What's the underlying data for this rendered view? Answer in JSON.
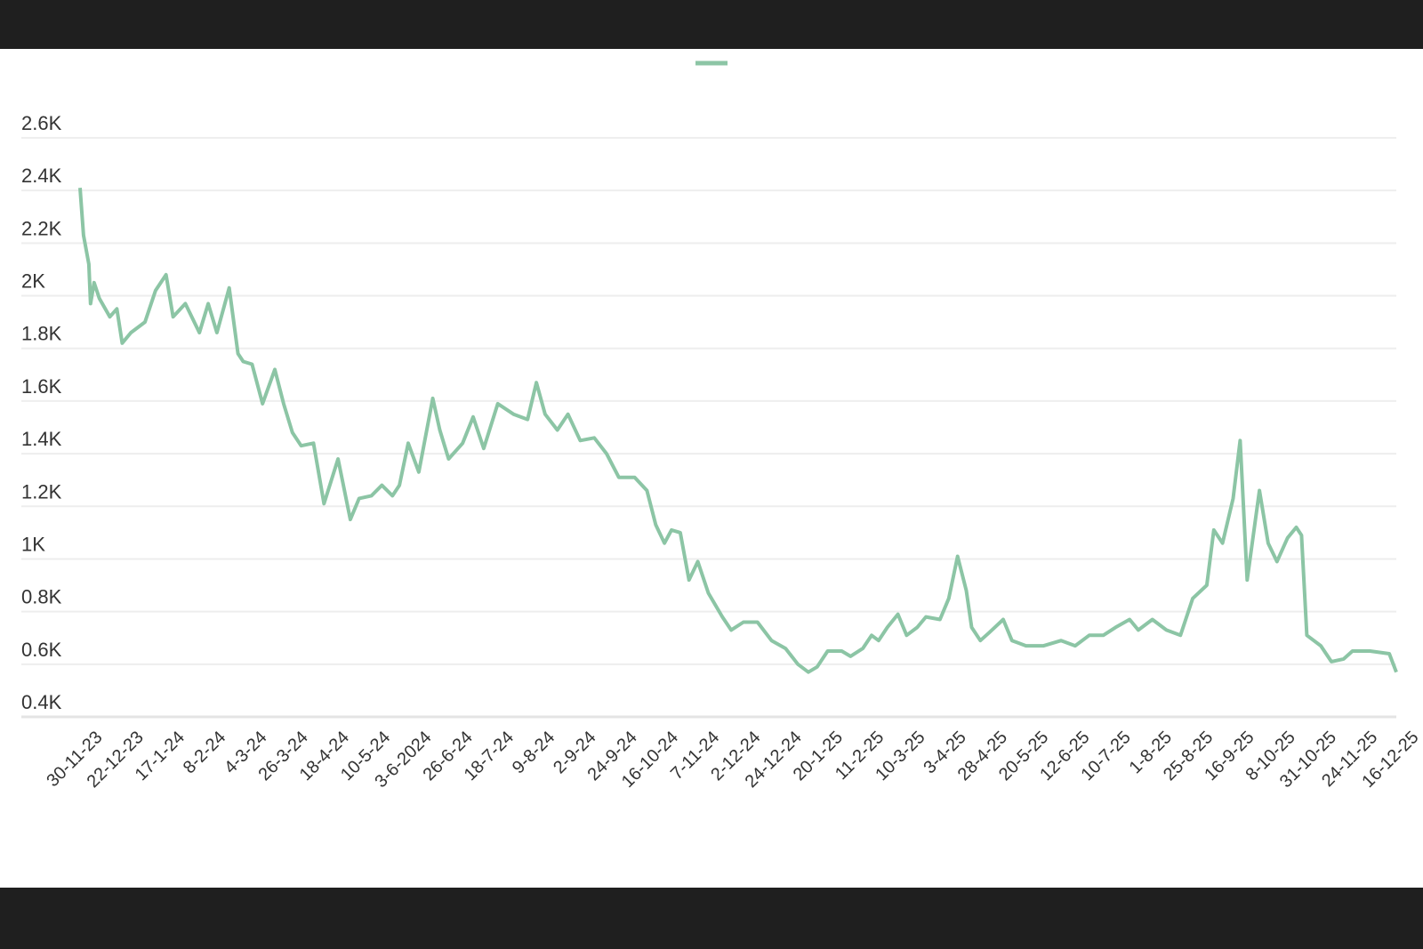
{
  "chart_data": {
    "type": "line",
    "title": "",
    "xlabel": "",
    "ylabel": "",
    "legend": {
      "placement": "top-center",
      "entries": [
        ""
      ]
    },
    "series_color": "#8cc5a5",
    "grid": true,
    "ylim": [
      400,
      2600
    ],
    "y_ticks": [
      "0.4K",
      "0.6K",
      "0.8K",
      "1K",
      "1.2K",
      "1.4K",
      "1.6K",
      "1.8K",
      "2K",
      "2.2K",
      "2.4K",
      "2.6K"
    ],
    "y_tick_values": [
      400,
      600,
      800,
      1000,
      1200,
      1400,
      1600,
      1800,
      2000,
      2200,
      2400,
      2600
    ],
    "x_ticks": [
      "30-11-23",
      "22-12-23",
      "17-1-24",
      "8-2-24",
      "4-3-24",
      "26-3-24",
      "18-4-24",
      "10-5-24",
      "3-6-2024",
      "26-6-24",
      "18-7-24",
      "9-8-24",
      "2-9-24",
      "24-9-24",
      "16-10-24",
      "7-11-24",
      "2-12-24",
      "24-12-24",
      "20-1-25",
      "11-2-25",
      "10-3-25",
      "3-4-25",
      "28-4-25",
      "20-5-25",
      "12-6-25",
      "10-7-25",
      "1-8-25",
      "25-8-25",
      "16-9-25",
      "8-10-25",
      "31-10-25",
      "24-11-25",
      "16-12-25"
    ],
    "x_range_days": [
      0,
      750
    ],
    "x_unit": "days since 30-11-23",
    "series": [
      {
        "name": "",
        "points": [
          [
            0,
            2410
          ],
          [
            2,
            2230
          ],
          [
            5,
            2120
          ],
          [
            6,
            1970
          ],
          [
            8,
            2050
          ],
          [
            11,
            1990
          ],
          [
            17,
            1920
          ],
          [
            21,
            1950
          ],
          [
            24,
            1820
          ],
          [
            29,
            1860
          ],
          [
            37,
            1900
          ],
          [
            43,
            2020
          ],
          [
            49,
            2080
          ],
          [
            53,
            1920
          ],
          [
            60,
            1970
          ],
          [
            68,
            1860
          ],
          [
            73,
            1970
          ],
          [
            78,
            1860
          ],
          [
            85,
            2030
          ],
          [
            90,
            1780
          ],
          [
            93,
            1750
          ],
          [
            98,
            1740
          ],
          [
            104,
            1590
          ],
          [
            111,
            1720
          ],
          [
            116,
            1590
          ],
          [
            121,
            1480
          ],
          [
            126,
            1430
          ],
          [
            133,
            1440
          ],
          [
            139,
            1210
          ],
          [
            147,
            1380
          ],
          [
            154,
            1150
          ],
          [
            159,
            1230
          ],
          [
            166,
            1240
          ],
          [
            172,
            1280
          ],
          [
            178,
            1240
          ],
          [
            182,
            1280
          ],
          [
            187,
            1440
          ],
          [
            193,
            1330
          ],
          [
            201,
            1610
          ],
          [
            205,
            1490
          ],
          [
            210,
            1380
          ],
          [
            218,
            1440
          ],
          [
            224,
            1540
          ],
          [
            230,
            1420
          ],
          [
            238,
            1590
          ],
          [
            247,
            1550
          ],
          [
            255,
            1530
          ],
          [
            260,
            1670
          ],
          [
            265,
            1550
          ],
          [
            272,
            1490
          ],
          [
            278,
            1550
          ],
          [
            285,
            1450
          ],
          [
            293,
            1460
          ],
          [
            300,
            1400
          ],
          [
            307,
            1310
          ],
          [
            316,
            1310
          ],
          [
            323,
            1260
          ],
          [
            328,
            1130
          ],
          [
            333,
            1060
          ],
          [
            337,
            1110
          ],
          [
            342,
            1100
          ],
          [
            347,
            920
          ],
          [
            352,
            990
          ],
          [
            358,
            870
          ],
          [
            366,
            780
          ],
          [
            371,
            730
          ],
          [
            378,
            760
          ],
          [
            386,
            760
          ],
          [
            394,
            690
          ],
          [
            402,
            660
          ],
          [
            409,
            600
          ],
          [
            415,
            570
          ],
          [
            420,
            590
          ],
          [
            426,
            650
          ],
          [
            434,
            650
          ],
          [
            439,
            630
          ],
          [
            446,
            660
          ],
          [
            451,
            710
          ],
          [
            455,
            690
          ],
          [
            460,
            740
          ],
          [
            466,
            790
          ],
          [
            471,
            710
          ],
          [
            477,
            740
          ],
          [
            482,
            780
          ],
          [
            490,
            770
          ],
          [
            495,
            850
          ],
          [
            500,
            1010
          ],
          [
            505,
            880
          ],
          [
            508,
            740
          ],
          [
            513,
            690
          ],
          [
            518,
            720
          ],
          [
            526,
            770
          ],
          [
            531,
            690
          ],
          [
            539,
            670
          ],
          [
            549,
            670
          ],
          [
            559,
            690
          ],
          [
            567,
            670
          ],
          [
            575,
            710
          ],
          [
            583,
            710
          ],
          [
            590,
            740
          ],
          [
            598,
            770
          ],
          [
            603,
            730
          ],
          [
            611,
            770
          ],
          [
            619,
            730
          ],
          [
            627,
            710
          ],
          [
            634,
            850
          ],
          [
            642,
            900
          ],
          [
            646,
            1110
          ],
          [
            651,
            1060
          ],
          [
            657,
            1230
          ],
          [
            661,
            1450
          ],
          [
            665,
            920
          ],
          [
            672,
            1260
          ],
          [
            677,
            1060
          ],
          [
            682,
            990
          ],
          [
            688,
            1080
          ],
          [
            693,
            1120
          ],
          [
            696,
            1090
          ],
          [
            699,
            710
          ],
          [
            707,
            670
          ],
          [
            713,
            610
          ],
          [
            720,
            620
          ],
          [
            725,
            650
          ],
          [
            735,
            650
          ],
          [
            746,
            640
          ],
          [
            750,
            570
          ]
        ]
      }
    ]
  }
}
